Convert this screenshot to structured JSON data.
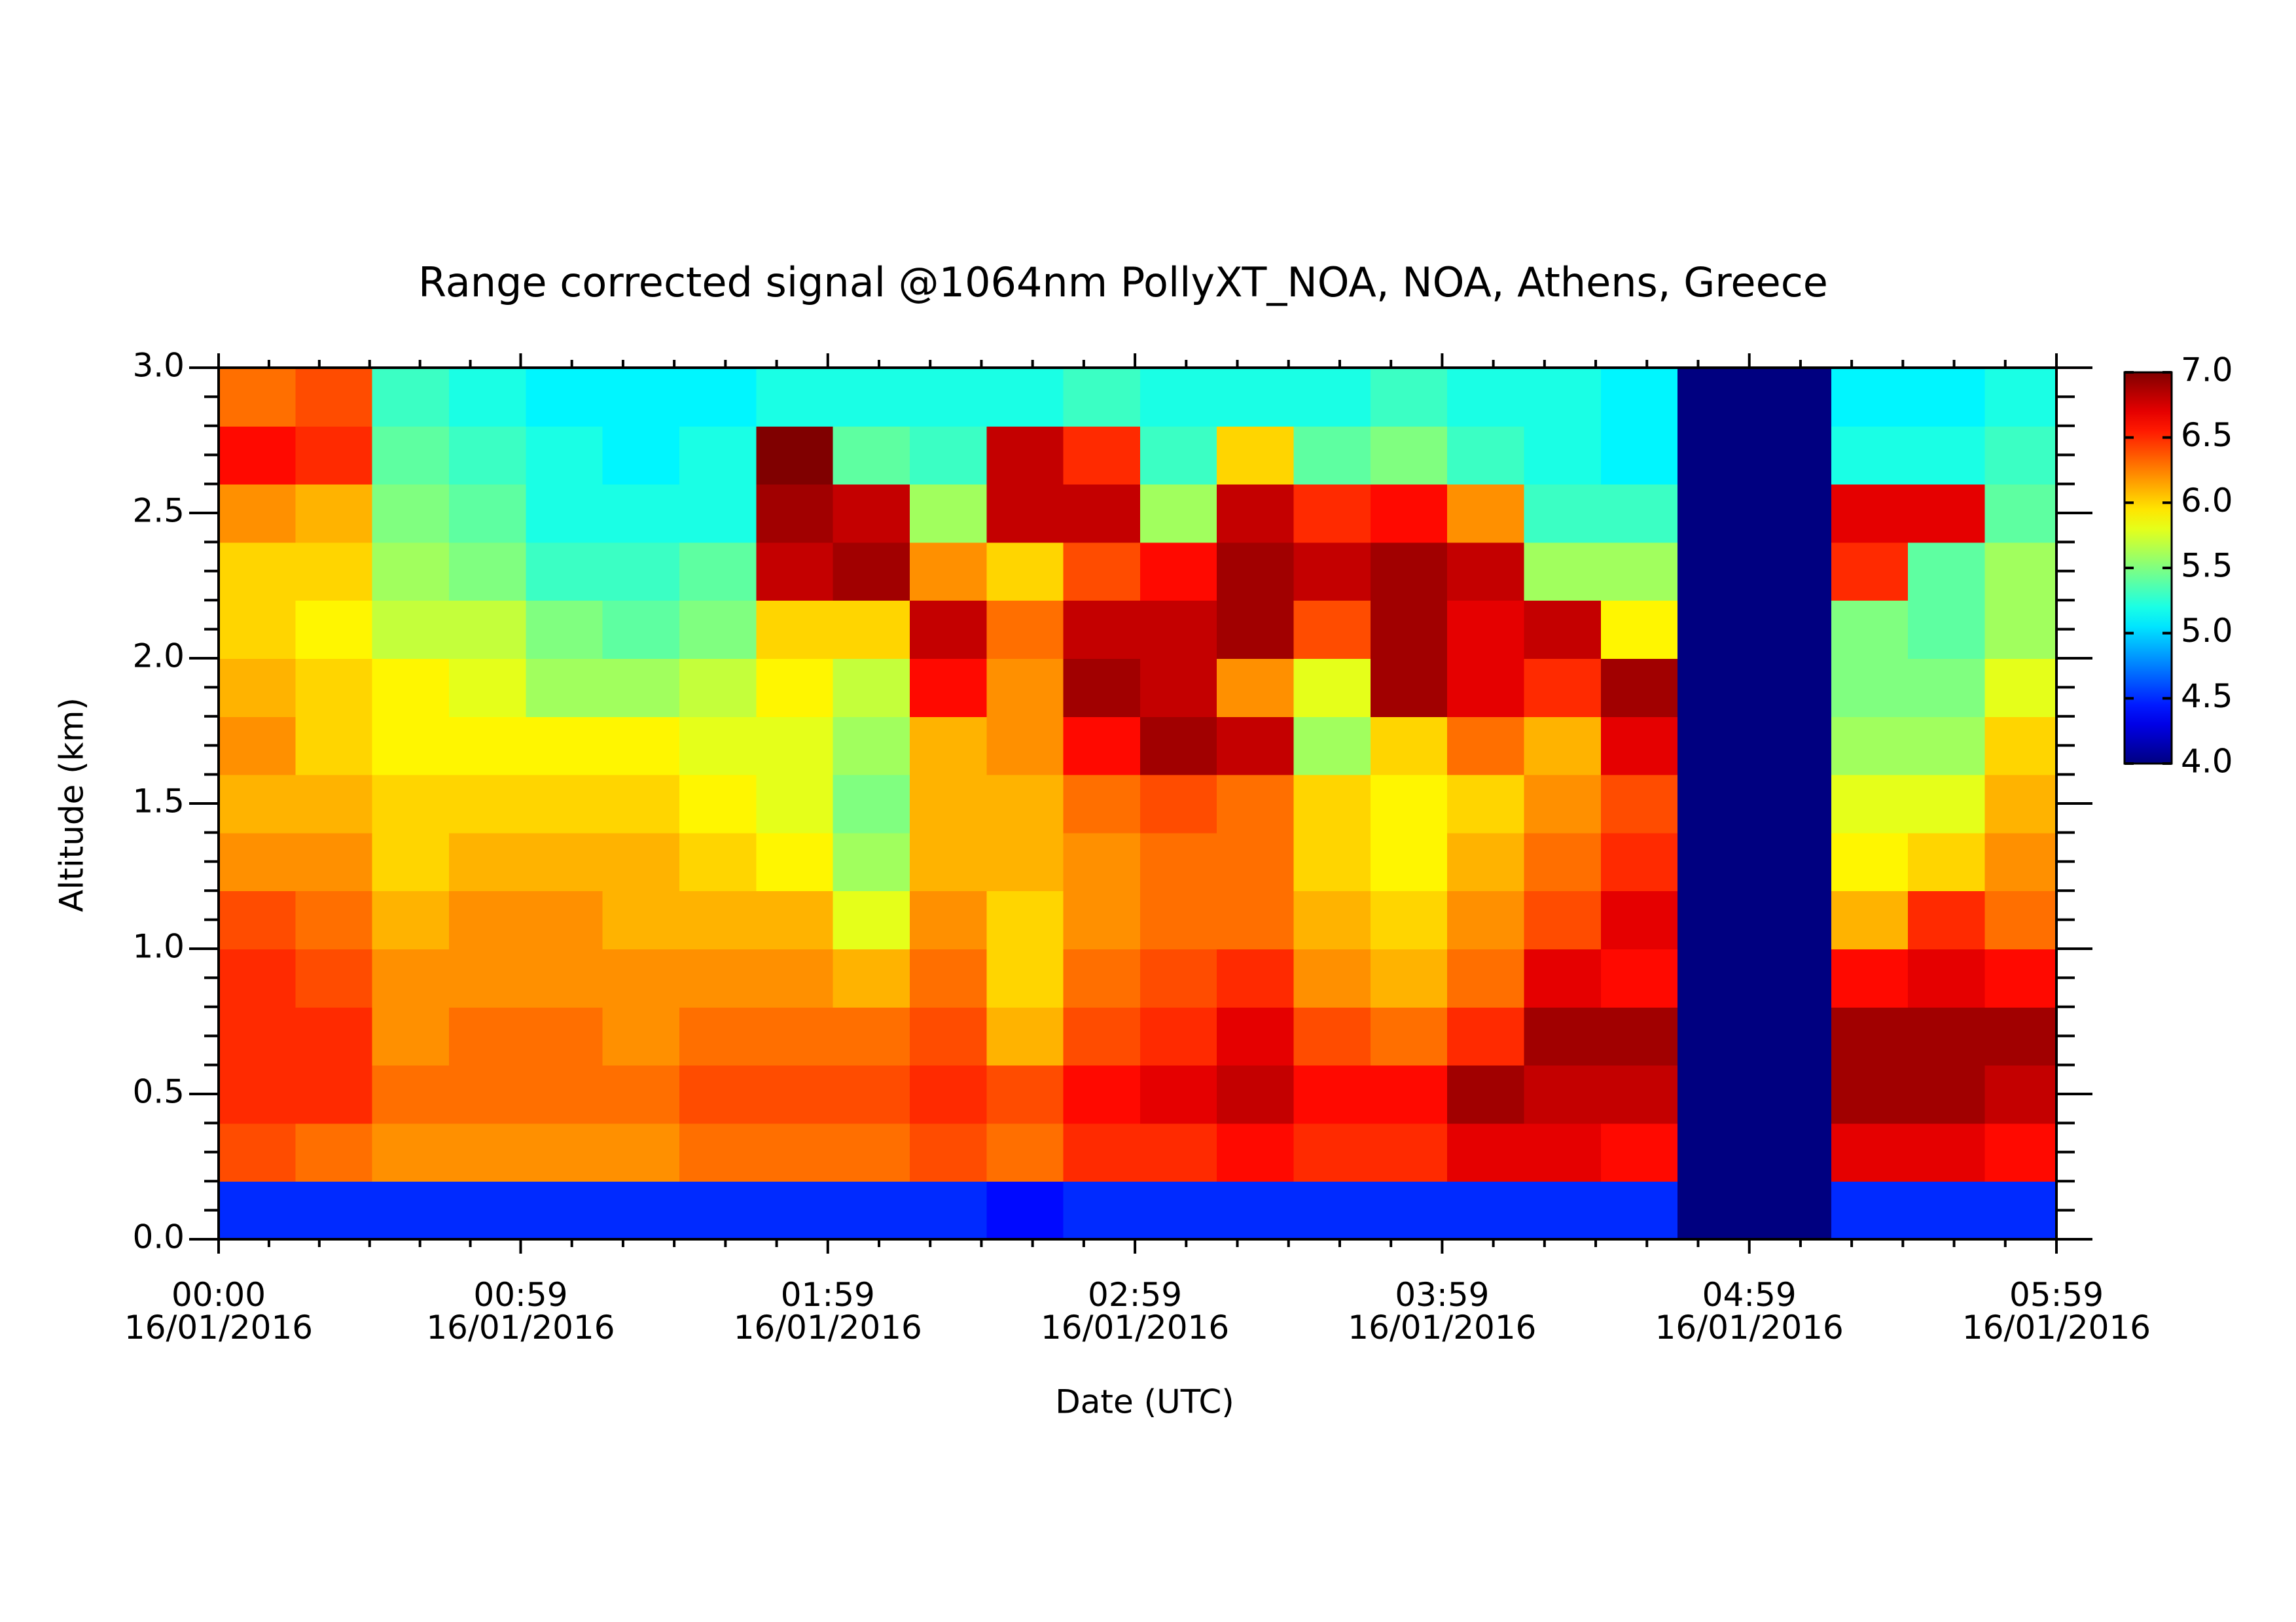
{
  "chart_data": {
    "type": "heatmap",
    "title": "Range corrected signal @1064nm  PollyXT_NOA, NOA, Athens, Greece",
    "x_label": "Date (UTC)",
    "y_label": "Altitude (km)",
    "colormap": "jet",
    "xlim": [
      0,
      359
    ],
    "xticks": [
      {
        "value": 0,
        "label": "00:00\n16/01/2016"
      },
      {
        "value": 59,
        "label": "00:59\n16/01/2016"
      },
      {
        "value": 119,
        "label": "01:59\n16/01/2016"
      },
      {
        "value": 179,
        "label": "02:59\n16/01/2016"
      },
      {
        "value": 239,
        "label": "03:59\n16/01/2016"
      },
      {
        "value": 299,
        "label": "04:59\n16/01/2016"
      },
      {
        "value": 359,
        "label": "05:59\n16/01/2016"
      }
    ],
    "ylim": [
      0,
      3
    ],
    "yticks": [
      {
        "value": 0,
        "label": "0.0"
      },
      {
        "value": 0.5,
        "label": "0.5"
      },
      {
        "value": 1,
        "label": "1.0"
      },
      {
        "value": 1.5,
        "label": "1.5"
      },
      {
        "value": 2,
        "label": "2.0"
      },
      {
        "value": 2.5,
        "label": "2.5"
      },
      {
        "value": 3,
        "label": "3.0"
      }
    ],
    "zlim": [
      4,
      7
    ],
    "zticks": [
      {
        "value": 4,
        "label": "4.0"
      },
      {
        "value": 4.5,
        "label": "4.5"
      },
      {
        "value": 5,
        "label": "5.0"
      },
      {
        "value": 5.5,
        "label": "5.5"
      },
      {
        "value": 6,
        "label": "6.0"
      },
      {
        "value": 6.5,
        "label": "6.5"
      },
      {
        "value": 7,
        "label": "7.0"
      }
    ],
    "x": [
      7.5,
      22.5,
      37.5,
      52.5,
      67.5,
      82.5,
      97.5,
      112.5,
      127.5,
      142.5,
      157.5,
      172.5,
      187.5,
      202.5,
      217.5,
      232.5,
      247.5,
      262.5,
      277.5,
      292.5,
      307.5,
      322.5,
      337.5,
      352.5
    ],
    "y": [
      0.1,
      0.3,
      0.5,
      0.7,
      0.9,
      1.1,
      1.3,
      1.5,
      1.7,
      1.9,
      2.1,
      2.3,
      2.5,
      2.7,
      2.9
    ],
    "z": [
      [
        4.5,
        6.4,
        6.5,
        6.5,
        6.5,
        6.4,
        6.2,
        6.1,
        6.2,
        6.1,
        6.0,
        6.0,
        6.2,
        6.6,
        6.3
      ],
      [
        4.5,
        6.3,
        6.5,
        6.5,
        6.4,
        6.3,
        6.2,
        6.1,
        6.0,
        6.0,
        5.9,
        6.0,
        6.1,
        6.5,
        6.4
      ],
      [
        4.5,
        6.2,
        6.3,
        6.2,
        6.2,
        6.1,
        6.0,
        6.0,
        5.9,
        5.9,
        5.7,
        5.6,
        5.5,
        5.4,
        5.3
      ],
      [
        4.5,
        6.2,
        6.3,
        6.3,
        6.2,
        6.2,
        6.1,
        6.0,
        5.9,
        5.8,
        5.7,
        5.5,
        5.4,
        5.3,
        5.2
      ],
      [
        4.5,
        6.2,
        6.3,
        6.3,
        6.2,
        6.2,
        6.1,
        6.0,
        5.9,
        5.6,
        5.5,
        5.3,
        5.2,
        5.2,
        5.1
      ],
      [
        4.5,
        6.2,
        6.3,
        6.2,
        6.2,
        6.1,
        6.1,
        6.0,
        5.9,
        5.6,
        5.4,
        5.3,
        5.2,
        5.1,
        5.1
      ],
      [
        4.5,
        6.3,
        6.4,
        6.3,
        6.2,
        6.1,
        6.0,
        5.9,
        5.8,
        5.7,
        5.5,
        5.4,
        5.2,
        5.2,
        5.1
      ],
      [
        4.5,
        6.3,
        6.4,
        6.3,
        6.2,
        6.1,
        5.9,
        5.8,
        5.8,
        5.9,
        6.0,
        6.8,
        6.9,
        7.0,
        5.2
      ],
      [
        4.5,
        6.3,
        6.4,
        6.3,
        6.1,
        5.8,
        5.6,
        5.5,
        5.6,
        5.7,
        6.0,
        6.9,
        6.8,
        5.4,
        5.2
      ],
      [
        4.5,
        6.4,
        6.5,
        6.4,
        6.3,
        6.2,
        6.1,
        6.1,
        6.1,
        6.6,
        6.8,
        6.2,
        5.6,
        5.3,
        5.2
      ],
      [
        4.4,
        6.3,
        6.4,
        6.1,
        6.0,
        6.0,
        6.1,
        6.1,
        6.2,
        6.2,
        6.3,
        6.0,
        6.8,
        6.8,
        5.2
      ],
      [
        4.5,
        6.5,
        6.6,
        6.4,
        6.3,
        6.2,
        6.2,
        6.3,
        6.6,
        6.9,
        6.8,
        6.4,
        6.8,
        6.5,
        5.3
      ],
      [
        4.5,
        6.5,
        6.7,
        6.5,
        6.4,
        6.3,
        6.3,
        6.4,
        6.9,
        6.8,
        6.8,
        6.6,
        5.6,
        5.3,
        5.2
      ],
      [
        4.5,
        6.6,
        6.8,
        6.7,
        6.5,
        6.3,
        6.3,
        6.3,
        6.8,
        6.2,
        6.9,
        6.9,
        6.8,
        6.0,
        5.2
      ],
      [
        4.5,
        6.5,
        6.6,
        6.4,
        6.2,
        6.1,
        6.0,
        6.0,
        5.6,
        5.8,
        6.4,
        6.8,
        6.5,
        5.4,
        5.2
      ],
      [
        4.5,
        6.5,
        6.6,
        6.3,
        6.1,
        6.0,
        5.9,
        5.9,
        6.0,
        6.9,
        6.9,
        6.9,
        6.6,
        5.5,
        5.3
      ],
      [
        4.5,
        6.7,
        6.9,
        6.5,
        6.3,
        6.2,
        6.1,
        6.0,
        6.3,
        6.7,
        6.7,
        6.8,
        6.2,
        5.3,
        5.2
      ],
      [
        4.5,
        6.7,
        6.8,
        6.9,
        6.7,
        6.4,
        6.3,
        6.2,
        6.1,
        6.5,
        6.8,
        5.6,
        5.3,
        5.2,
        5.2
      ],
      [
        4.5,
        6.6,
        6.8,
        6.9,
        6.6,
        6.7,
        6.5,
        6.4,
        6.7,
        6.9,
        5.9,
        5.6,
        5.3,
        5.1,
        5.1
      ],
      [
        4.0,
        4.0,
        4.0,
        4.0,
        4.0,
        4.0,
        4.0,
        4.0,
        4.0,
        4.0,
        4.0,
        4.0,
        4.0,
        4.0,
        4.0
      ],
      [
        4.0,
        4.0,
        4.0,
        4.0,
        4.0,
        4.0,
        4.0,
        4.0,
        4.0,
        4.0,
        4.0,
        4.0,
        4.0,
        4.0,
        4.0
      ],
      [
        4.5,
        6.7,
        6.9,
        6.9,
        6.6,
        6.1,
        5.9,
        5.8,
        5.6,
        5.5,
        5.5,
        6.5,
        6.7,
        5.2,
        5.1
      ],
      [
        4.5,
        6.7,
        6.9,
        6.9,
        6.7,
        6.5,
        6.0,
        5.8,
        5.6,
        5.5,
        5.4,
        5.4,
        6.7,
        5.2,
        5.1
      ],
      [
        4.5,
        6.6,
        6.8,
        6.9,
        6.6,
        6.3,
        6.2,
        6.1,
        6.0,
        5.8,
        5.6,
        5.6,
        5.4,
        5.3,
        5.2
      ]
    ]
  }
}
